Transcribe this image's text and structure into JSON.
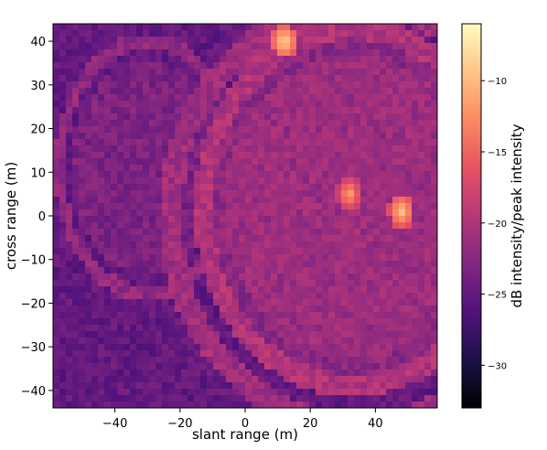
{
  "chart_data": {
    "type": "heatmap",
    "title": "",
    "xlabel": "slant range (m)",
    "ylabel": "cross range (m)",
    "xlim": [
      -59,
      59
    ],
    "ylim": [
      -44,
      44
    ],
    "x_ticks": [
      -40,
      -20,
      0,
      20,
      40
    ],
    "y_ticks": [
      -40,
      -30,
      -20,
      -10,
      0,
      10,
      20,
      30,
      40
    ],
    "colorbar": {
      "label": "dB intensity/peak intensity",
      "colormap": "magma",
      "range": [
        -33,
        -6
      ],
      "ticks": [
        -30,
        -25,
        -20,
        -15,
        -10
      ]
    },
    "grid": false,
    "description_features": {
      "background_level_db": -25,
      "bright_structures": [
        {
          "shape": "ellipse",
          "center": [
            -30,
            11
          ],
          "radii": [
            27,
            29
          ],
          "level_db": -22
        },
        {
          "shape": "ellipse",
          "center": [
            33,
            2
          ],
          "radii": [
            46,
            41
          ],
          "level_db": -20
        },
        {
          "shape": "ellipse",
          "center": [
            35,
            0
          ],
          "radii": [
            58,
            48
          ],
          "level_db": -21
        }
      ],
      "bright_features": [
        {
          "x": 12,
          "y": 40,
          "level_db": -8
        },
        {
          "x": 48,
          "y": 1,
          "level_db": -9
        },
        {
          "x": 32,
          "y": 5,
          "level_db": -11
        }
      ]
    }
  },
  "colormap_stops": [
    "#000004",
    "#1d1147",
    "#51127c",
    "#822681",
    "#b73779",
    "#e75263",
    "#fc8961",
    "#fec488",
    "#fcfdbf"
  ]
}
